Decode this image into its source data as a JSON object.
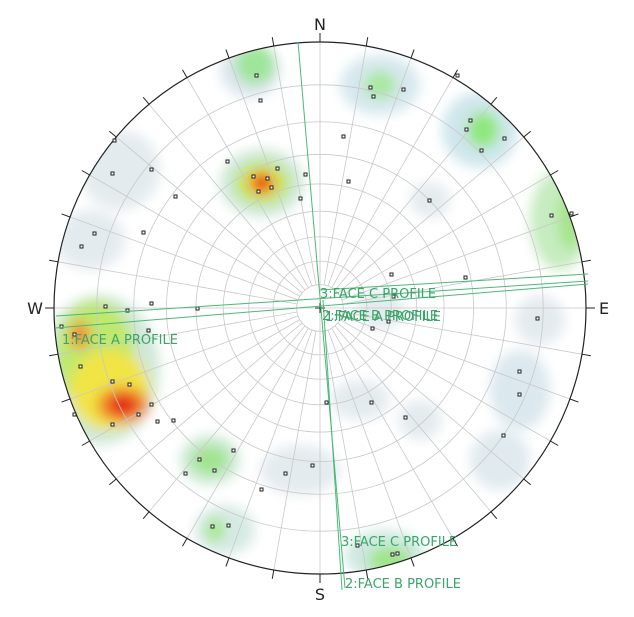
{
  "compass": {
    "north": "N",
    "east": "E",
    "south": "S",
    "west": "W"
  },
  "profiles": [
    {
      "outer_label": "1:FACE A PROFILE",
      "center_label": "1:FACE A PROFILE"
    },
    {
      "outer_label": "2:FACE B PROFILE",
      "center_label": "2:FACE B PROFILE"
    },
    {
      "outer_label": "3:FACE C PROFILE",
      "center_label": "3:FACE C PROFILE"
    }
  ]
}
